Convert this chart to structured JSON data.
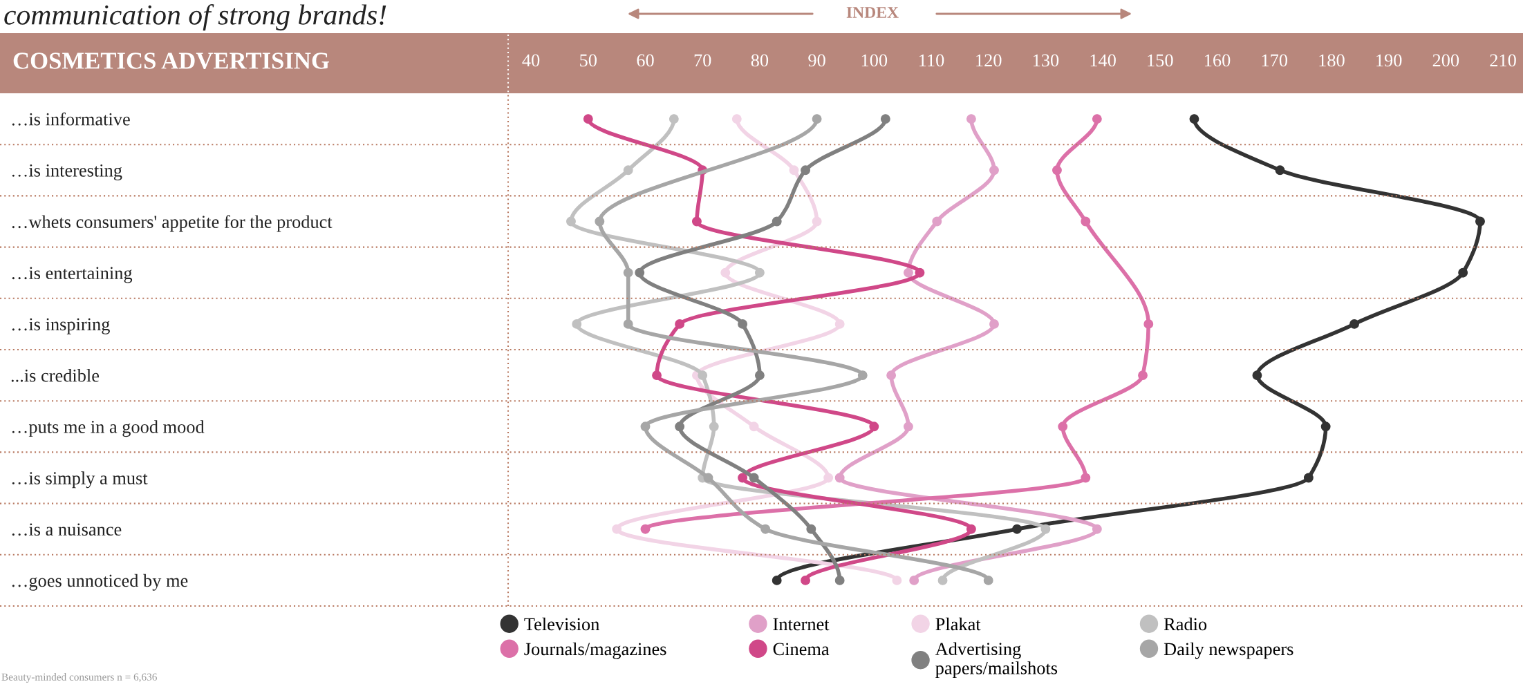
{
  "chart_data": {
    "type": "line",
    "orientation": "horizontal",
    "title": "communication of strong brands!",
    "ylabel": "COSMETICS ADVERTISING",
    "xlabel": "INDEX",
    "categories": [
      "…is informative",
      "…is interesting",
      "…whets consumers' appetite for the product",
      "…is entertaining",
      "…is inspiring",
      "...is credible",
      "…puts me in a good mood",
      "…is simply a must",
      "…is a nuisance",
      "…goes unnoticed by me"
    ],
    "xlim": [
      36,
      213.5
    ],
    "xticks": [
      40,
      50,
      60,
      70,
      80,
      90,
      100,
      110,
      120,
      130,
      140,
      150,
      160,
      170,
      180,
      190,
      200,
      210
    ],
    "marker": "circle",
    "line_style": "solid",
    "legend": "bottom",
    "grid": false,
    "annotations": [
      "Beauty-minded consumers n = 6,636"
    ],
    "series": [
      {
        "name": "Television",
        "color": "#333333",
        "values": [
          156,
          171,
          206,
          203,
          184,
          167,
          179,
          176,
          125,
          83
        ]
      },
      {
        "name": "Internet",
        "color": "#e0a0c8",
        "values": [
          117,
          121,
          111,
          106,
          121,
          103,
          106,
          94,
          139,
          107
        ]
      },
      {
        "name": "Plakat",
        "color": "#f2d4e6",
        "values": [
          76,
          86,
          90,
          74,
          94,
          69,
          79,
          92,
          55,
          104
        ]
      },
      {
        "name": "Radio",
        "color": "#c0c0c0",
        "values": [
          65,
          57,
          47,
          80,
          48,
          70,
          72,
          70,
          130,
          112
        ]
      },
      {
        "name": "Journals/magazines",
        "color": "#dc70a8",
        "values": [
          139,
          132,
          137,
          null,
          148,
          147,
          133,
          137,
          60,
          null
        ]
      },
      {
        "name": "Cinema",
        "color": "#d04888",
        "values": [
          50,
          70,
          69,
          108,
          66,
          62,
          100,
          77,
          117,
          88
        ]
      },
      {
        "name": "Advertising\npapers/mailshots",
        "color": "#808080",
        "values": [
          102,
          88,
          83,
          59,
          77,
          80,
          66,
          79,
          89,
          94
        ]
      },
      {
        "name": "Daily newspapers",
        "color": "#a6a6a6",
        "values": [
          90,
          null,
          52,
          57,
          57,
          98,
          60,
          71,
          81,
          120
        ]
      }
    ]
  }
}
